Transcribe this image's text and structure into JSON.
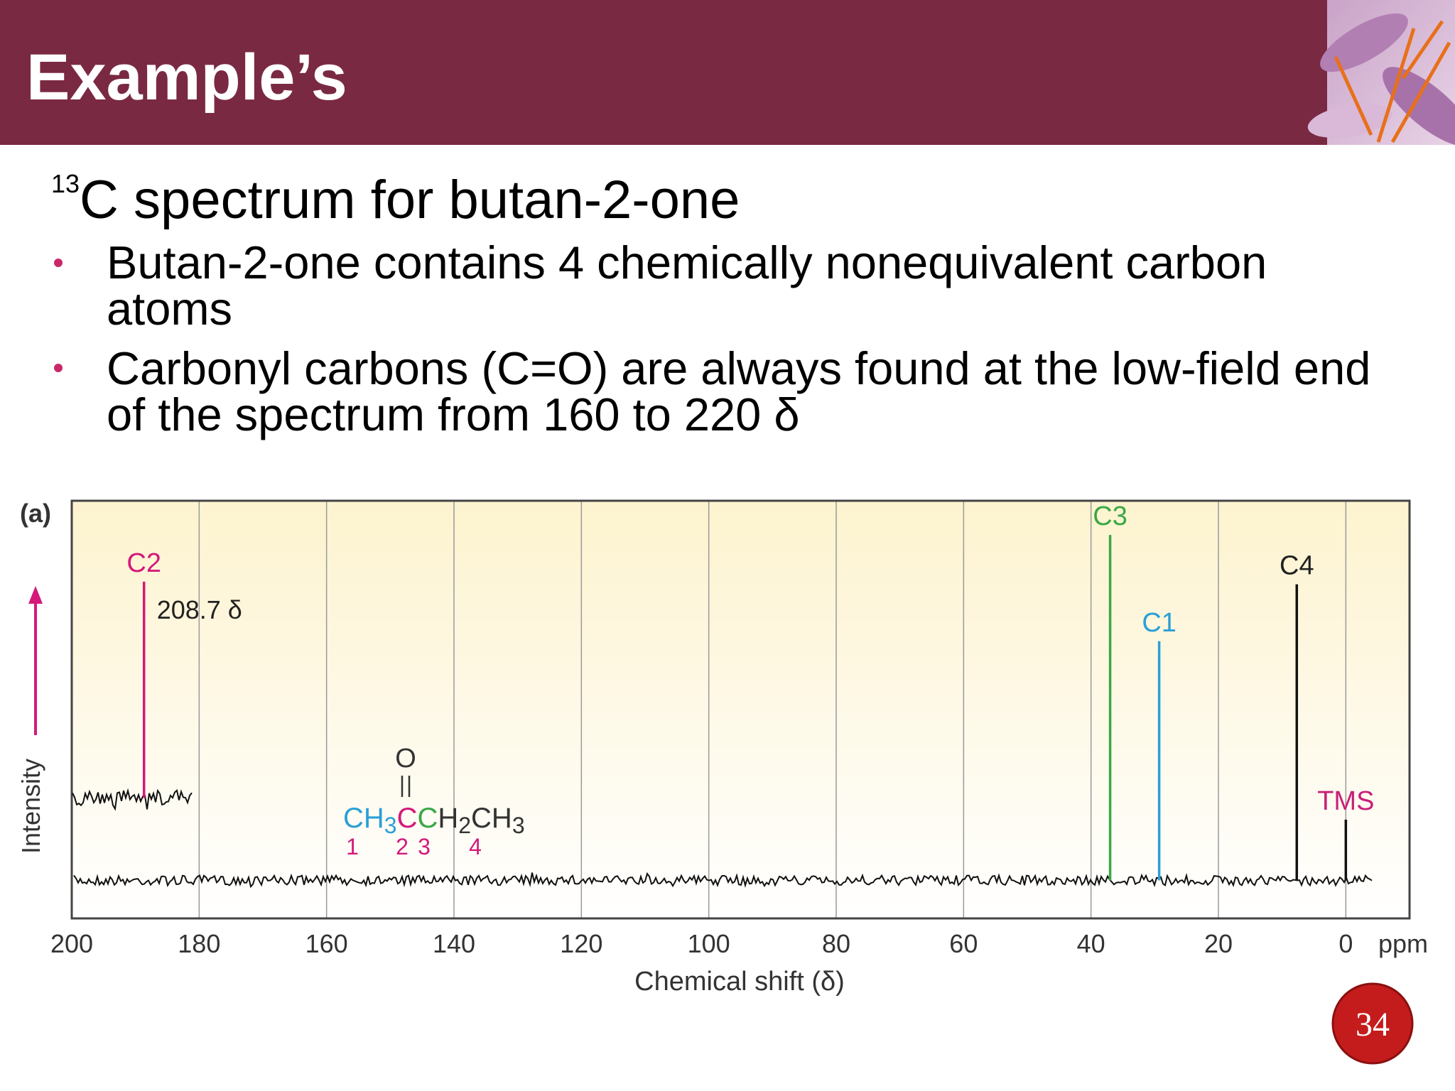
{
  "header": {
    "title": "Example’s"
  },
  "subtitle": {
    "superscript": "13",
    "text": "C spectrum for butan-2-one"
  },
  "bullets": [
    "Butan-2-one contains 4 chemically nonequivalent carbon atoms",
    "Carbonyl carbons (C=O) are always found at the low-field end of the spectrum from 160 to 220 δ"
  ],
  "page_number": "34",
  "chart_data": {
    "type": "spectrum",
    "panel_label": "(a)",
    "x_label": "Chemical shift (δ)",
    "x_unit": "ppm",
    "y_label": "Intensity",
    "xlim": [
      200,
      -10
    ],
    "xticks": [
      200,
      180,
      160,
      140,
      120,
      100,
      80,
      60,
      40,
      20,
      0
    ],
    "ylim": [
      -10,
      100
    ],
    "grid": true,
    "inset": {
      "xlim": [
        220,
        201
      ]
    },
    "peaks": [
      {
        "label": "C2",
        "x": 208.7,
        "value": 57,
        "color": "#d4197b",
        "label_color": "#d4197b",
        "x_value_label": "208.7 δ",
        "inset": true
      },
      {
        "label": "C3",
        "x": 37,
        "value": 91,
        "color": "#3aa845",
        "label_color": "#3aa845"
      },
      {
        "label": "C1",
        "x": 29.3,
        "value": 63,
        "color": "#2b9fd6",
        "label_color": "#2b9fd6"
      },
      {
        "label": "C4",
        "x": 7.7,
        "value": 78,
        "color": "#111111",
        "label_color": "#222222"
      },
      {
        "label": "TMS",
        "x": 0,
        "value": 16,
        "color": "#111111",
        "label_color": "#c81f78"
      }
    ],
    "structure": {
      "oxygen": "O",
      "parts": [
        {
          "text": "CH",
          "color": "#2b9fd6"
        },
        {
          "text": "3",
          "color": "#2b9fd6",
          "sub": true
        },
        {
          "text": "C",
          "color": "#d4197b"
        },
        {
          "text": "C",
          "color": "#3aa845"
        },
        {
          "text": "H",
          "color": "#333333"
        },
        {
          "text": "2",
          "color": "#333333",
          "sub": true
        },
        {
          "text": "CH",
          "color": "#333333"
        },
        {
          "text": "3",
          "color": "#333333",
          "sub": true
        }
      ],
      "numbers": [
        "1",
        "2",
        "3",
        "4"
      ],
      "number_color": "#d4197b"
    }
  }
}
